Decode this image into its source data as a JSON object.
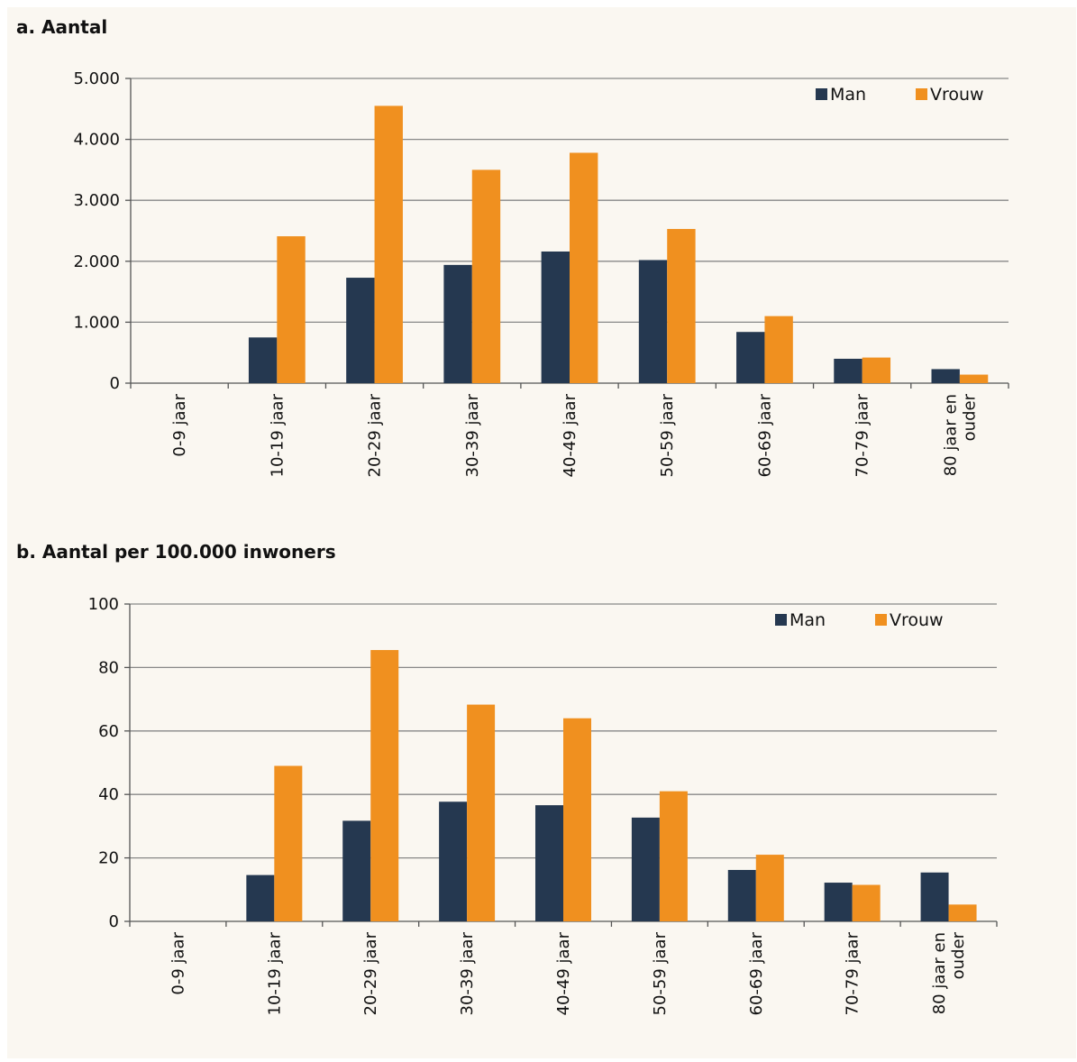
{
  "colors": {
    "man": "#253850",
    "vrouw": "#f0901f",
    "grid": "#888888",
    "axis": "#555555",
    "background": "#faf7f1"
  },
  "chart_data": [
    {
      "type": "bar",
      "title": "a. Aantal",
      "categories": [
        "0-9 jaar",
        "10-19 jaar",
        "20-29 jaar",
        "30-39 jaar",
        "40-49 jaar",
        "50-59 jaar",
        "60-69 jaar",
        "70-79 jaar",
        "80 jaar en ouder"
      ],
      "category_lines": [
        [
          "0-9 jaar"
        ],
        [
          "10-19 jaar"
        ],
        [
          "20-29 jaar"
        ],
        [
          "30-39 jaar"
        ],
        [
          "40-49 jaar"
        ],
        [
          "50-59 jaar"
        ],
        [
          "60-69 jaar"
        ],
        [
          "70-79 jaar"
        ],
        [
          "80 jaar en",
          "ouder"
        ]
      ],
      "series": [
        {
          "name": "Man",
          "color": "#253850",
          "values": [
            0,
            750,
            1730,
            1940,
            2160,
            2020,
            840,
            400,
            230
          ]
        },
        {
          "name": "Vrouw",
          "color": "#f0901f",
          "values": [
            0,
            2410,
            4550,
            3500,
            3780,
            2530,
            1100,
            420,
            140
          ]
        }
      ],
      "ylim": [
        0,
        5000
      ],
      "yticks": [
        0,
        1000,
        2000,
        3000,
        4000,
        5000
      ],
      "ytick_labels": [
        "0",
        "1.000",
        "2.000",
        "3.000",
        "4.000",
        "5.000"
      ],
      "grid": true,
      "legend": "top-right",
      "xlabel": "",
      "ylabel": ""
    },
    {
      "type": "bar",
      "title": "b. Aantal per 100.000 inwoners",
      "categories": [
        "0-9 jaar",
        "10-19 jaar",
        "20-29 jaar",
        "30-39 jaar",
        "40-49 jaar",
        "50-59 jaar",
        "60-69 jaar",
        "70-79 jaar",
        "80 jaar en ouder"
      ],
      "category_lines": [
        [
          "0-9 jaar"
        ],
        [
          "10-19 jaar"
        ],
        [
          "20-29 jaar"
        ],
        [
          "30-39 jaar"
        ],
        [
          "40-49 jaar"
        ],
        [
          "50-59 jaar"
        ],
        [
          "60-69 jaar"
        ],
        [
          "70-79 jaar"
        ],
        [
          "80 jaar en",
          "ouder"
        ]
      ],
      "series": [
        {
          "name": "Man",
          "color": "#253850",
          "values": [
            0,
            14.6,
            31.7,
            37.7,
            36.6,
            32.7,
            16.2,
            12.2,
            15.4
          ]
        },
        {
          "name": "Vrouw",
          "color": "#f0901f",
          "values": [
            0,
            49.0,
            85.5,
            68.3,
            64.0,
            41.0,
            21.0,
            11.5,
            5.3
          ]
        }
      ],
      "ylim": [
        0,
        100
      ],
      "yticks": [
        0,
        20,
        40,
        60,
        80,
        100
      ],
      "ytick_labels": [
        "0",
        "20",
        "40",
        "60",
        "80",
        "100"
      ],
      "grid": true,
      "legend": "top-right",
      "xlabel": "",
      "ylabel": ""
    }
  ]
}
